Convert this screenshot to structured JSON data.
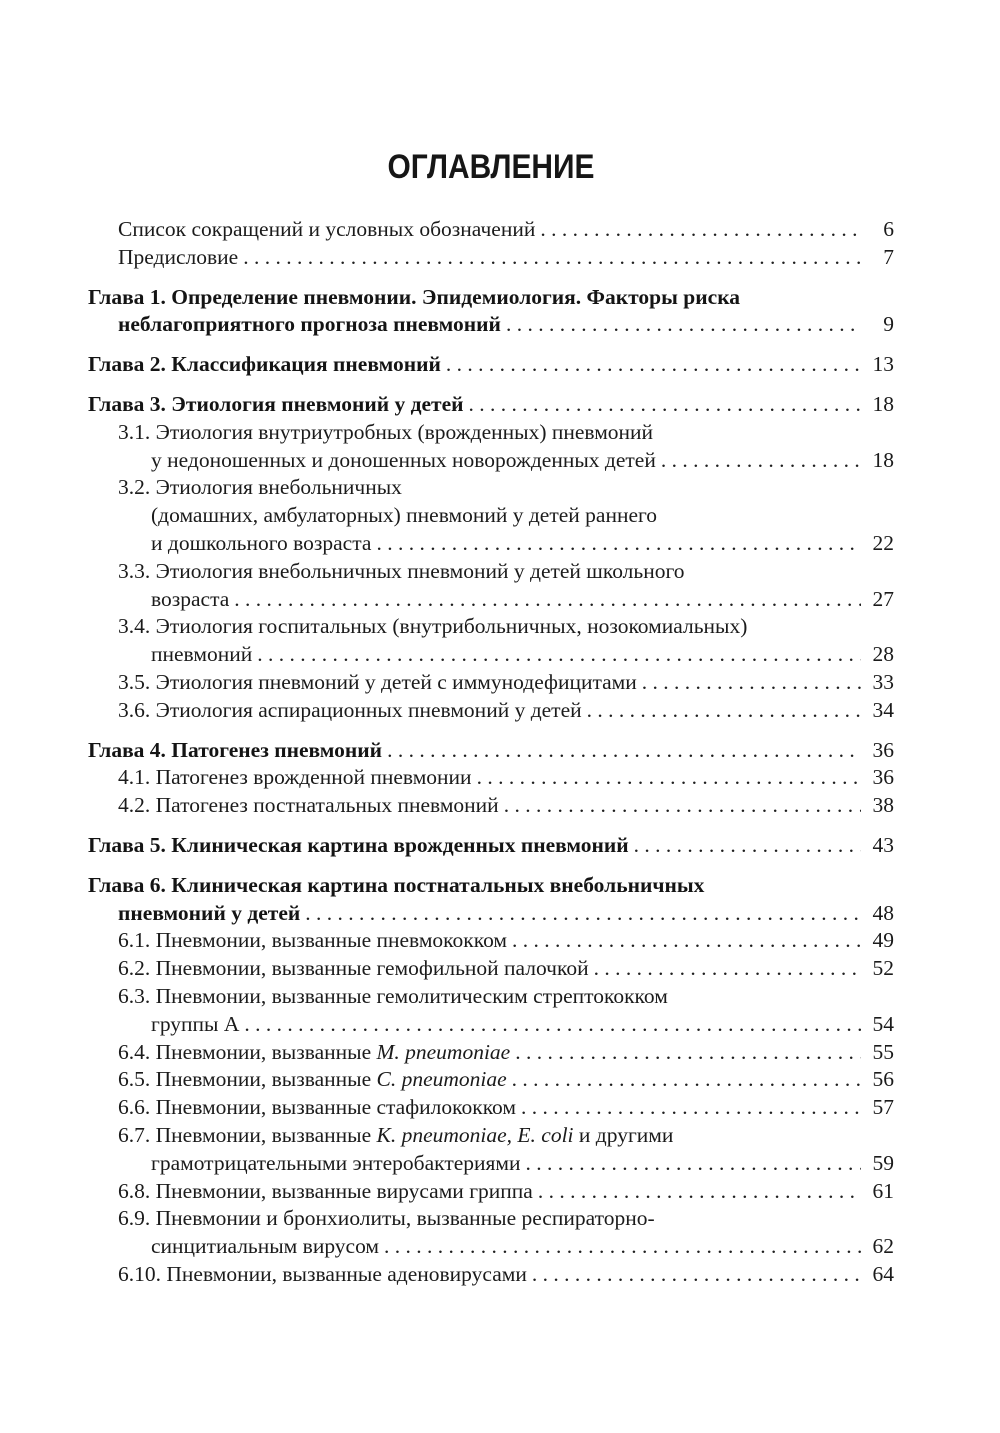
{
  "toc": {
    "title": "ОГЛАВЛЕНИЕ",
    "entries": [
      {
        "page": "6",
        "lines": [
          {
            "indent": 1,
            "parts": [
              {
                "text": "Список сокращений и условных обозначений"
              }
            ]
          }
        ]
      },
      {
        "page": "7",
        "lines": [
          {
            "indent": 1,
            "parts": [
              {
                "text": "Предисловие"
              }
            ]
          }
        ]
      },
      {
        "page": "9",
        "bold": true,
        "lines": [
          {
            "indent": 0,
            "parts": [
              {
                "text": "Глава 1. Определение пневмонии. Эпидемиология. Факторы риска"
              }
            ]
          },
          {
            "indent": 1,
            "parts": [
              {
                "text": "неблагоприятного прогноза пневмоний"
              }
            ]
          }
        ]
      },
      {
        "page": "13",
        "bold": true,
        "lines": [
          {
            "indent": 0,
            "parts": [
              {
                "text": "Глава 2. Классификация пневмоний"
              }
            ]
          }
        ]
      },
      {
        "page": "18",
        "bold": true,
        "lines": [
          {
            "indent": 0,
            "parts": [
              {
                "text": "Глава 3. Этиология пневмоний у детей"
              }
            ]
          }
        ]
      },
      {
        "page": "18",
        "lines": [
          {
            "indent": 1,
            "parts": [
              {
                "text": "3.1. Этиология внутриутробных (врожденных) пневмоний"
              }
            ]
          },
          {
            "indent": 2,
            "parts": [
              {
                "text": "у недоношенных и доношенных новорожденных детей"
              }
            ]
          }
        ]
      },
      {
        "page": "22",
        "lines": [
          {
            "indent": 1,
            "parts": [
              {
                "text": "3.2. Этиология внебольничных"
              }
            ]
          },
          {
            "indent": 2,
            "parts": [
              {
                "text": "(домашних, амбулаторных) пневмоний у детей раннего"
              }
            ]
          },
          {
            "indent": 2,
            "parts": [
              {
                "text": "и дошкольного возраста"
              }
            ]
          }
        ]
      },
      {
        "page": "27",
        "lines": [
          {
            "indent": 1,
            "parts": [
              {
                "text": "3.3. Этиология внебольничных пневмоний у детей школьного"
              }
            ]
          },
          {
            "indent": 2,
            "parts": [
              {
                "text": "возраста"
              }
            ]
          }
        ]
      },
      {
        "page": "28",
        "lines": [
          {
            "indent": 1,
            "parts": [
              {
                "text": "3.4. Этиология госпитальных (внутрибольничных, нозокомиальных)"
              }
            ]
          },
          {
            "indent": 2,
            "parts": [
              {
                "text": "пневмоний"
              }
            ]
          }
        ]
      },
      {
        "page": "33",
        "lines": [
          {
            "indent": 1,
            "parts": [
              {
                "text": "3.5. Этиология пневмоний у детей с иммунодефицитами"
              }
            ]
          }
        ]
      },
      {
        "page": "34",
        "lines": [
          {
            "indent": 1,
            "parts": [
              {
                "text": "3.6. Этиология аспирационных пневмоний у детей"
              }
            ]
          }
        ]
      },
      {
        "page": "36",
        "bold": true,
        "lines": [
          {
            "indent": 0,
            "parts": [
              {
                "text": "Глава 4. Патогенез пневмоний"
              }
            ]
          }
        ]
      },
      {
        "page": "36",
        "lines": [
          {
            "indent": 1,
            "parts": [
              {
                "text": "4.1. Патогенез врожденной пневмонии"
              }
            ]
          }
        ]
      },
      {
        "page": "38",
        "lines": [
          {
            "indent": 1,
            "parts": [
              {
                "text": "4.2. Патогенез постнатальных пневмоний"
              }
            ]
          }
        ]
      },
      {
        "page": "43",
        "bold": true,
        "lines": [
          {
            "indent": 0,
            "parts": [
              {
                "text": "Глава 5. Клиническая картина врожденных пневмоний"
              }
            ]
          }
        ]
      },
      {
        "page": "48",
        "bold": true,
        "lines": [
          {
            "indent": 0,
            "parts": [
              {
                "text": "Глава 6. Клиническая картина постнатальных внебольничных"
              }
            ]
          },
          {
            "indent": 1,
            "parts": [
              {
                "text": "пневмоний у детей"
              }
            ]
          }
        ]
      },
      {
        "page": "49",
        "lines": [
          {
            "indent": 1,
            "parts": [
              {
                "text": "6.1. Пневмонии, вызванные пневмококком"
              }
            ]
          }
        ]
      },
      {
        "page": "52",
        "lines": [
          {
            "indent": 1,
            "parts": [
              {
                "text": "6.2. Пневмонии, вызванные гемофильной палочкой"
              }
            ]
          }
        ]
      },
      {
        "page": "54",
        "lines": [
          {
            "indent": 1,
            "parts": [
              {
                "text": "6.3. Пневмонии, вызванные гемолитическим стрептококком"
              }
            ]
          },
          {
            "indent": 2,
            "parts": [
              {
                "text": "группы А"
              }
            ]
          }
        ]
      },
      {
        "page": "55",
        "lines": [
          {
            "indent": 1,
            "parts": [
              {
                "text": "6.4. Пневмонии, вызванные "
              },
              {
                "text": "M. pneumoniae",
                "italic": true
              }
            ]
          }
        ]
      },
      {
        "page": "56",
        "lines": [
          {
            "indent": 1,
            "parts": [
              {
                "text": "6.5. Пневмонии, вызванные "
              },
              {
                "text": "C. pneumoniae",
                "italic": true
              }
            ]
          }
        ]
      },
      {
        "page": "57",
        "lines": [
          {
            "indent": 1,
            "parts": [
              {
                "text": "6.6. Пневмонии, вызванные стафилококком"
              }
            ]
          }
        ]
      },
      {
        "page": "59",
        "lines": [
          {
            "indent": 1,
            "parts": [
              {
                "text": "6.7. Пневмонии, вызванные "
              },
              {
                "text": "K. pneumoniae, E. coli",
                "italic": true
              },
              {
                "text": " и другими"
              }
            ]
          },
          {
            "indent": 2,
            "parts": [
              {
                "text": "грамотрицательными энтеробактериями"
              }
            ]
          }
        ]
      },
      {
        "page": "61",
        "lines": [
          {
            "indent": 1,
            "parts": [
              {
                "text": "6.8. Пневмонии, вызванные вирусами гриппа"
              }
            ]
          }
        ]
      },
      {
        "page": "62",
        "lines": [
          {
            "indent": 1,
            "parts": [
              {
                "text": "6.9. Пневмонии и бронхиолиты, вызванные респираторно-"
              }
            ]
          },
          {
            "indent": 2,
            "parts": [
              {
                "text": "синцитиальным вирусом"
              }
            ]
          }
        ]
      },
      {
        "page": "64",
        "lines": [
          {
            "indent": 1,
            "parts": [
              {
                "text": "6.10. Пневмонии, вызванные аденовирусами"
              }
            ]
          }
        ]
      }
    ]
  }
}
